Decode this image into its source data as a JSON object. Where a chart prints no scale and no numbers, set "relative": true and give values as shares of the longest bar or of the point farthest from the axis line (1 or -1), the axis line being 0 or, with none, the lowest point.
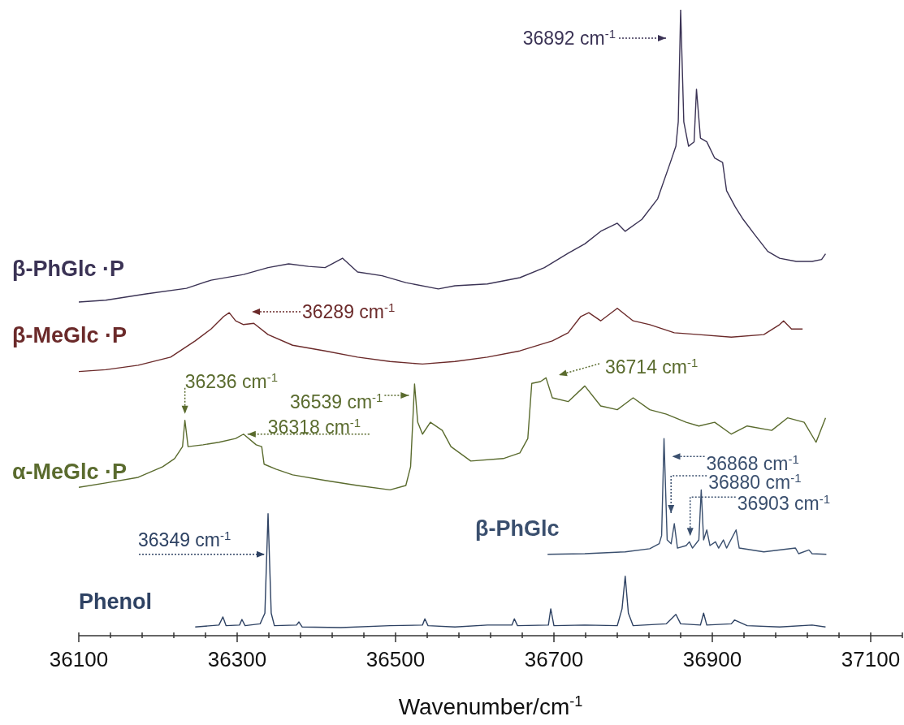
{
  "chart_data": {
    "type": "line",
    "relative": true,
    "xlabel": "Wavenumber/cm$^{-1}$",
    "xlim": [
      36100,
      37140
    ],
    "xticks": [
      36100,
      {
        "value": 36140,
        "label": null
      },
      {
        "value": 36180,
        "label": null
      },
      {
        "value": 36220,
        "label": null
      },
      {
        "value": 36260,
        "label": null
      },
      36300,
      {
        "value": 36340,
        "label": null
      },
      {
        "value": 36380,
        "label": null
      },
      {
        "value": 36420,
        "label": null
      },
      {
        "value": 36460,
        "label": null
      },
      36500,
      {
        "value": 36540,
        "label": null
      },
      {
        "value": 36580,
        "label": null
      },
      {
        "value": 36620,
        "label": null
      },
      {
        "value": 36660,
        "label": null
      },
      36700,
      {
        "value": 36740,
        "label": null
      },
      {
        "value": 36780,
        "label": null
      },
      {
        "value": 36820,
        "label": null
      },
      {
        "value": 36860,
        "label": null
      },
      36900,
      {
        "value": 36940,
        "label": null
      },
      {
        "value": 36980,
        "label": null
      },
      {
        "value": 37020,
        "label": null
      },
      {
        "value": 37060,
        "label": null
      },
      37100,
      {
        "value": 37140,
        "label": null
      }
    ],
    "series": [
      {
        "name": "β-PhGlc ·P",
        "color": "#3b3355",
        "x": [
          36100,
          36134,
          36185,
          36236,
          36267,
          36308,
          36339,
          36365,
          36390,
          36411,
          36433,
          36452,
          36483,
          36513,
          36554,
          36575,
          36616,
          36657,
          36688,
          36718,
          36739,
          36759,
          36780,
          36790,
          36811,
          36831,
          36847,
          36854,
          36857,
          36860,
          36864,
          36870,
          36877,
          36880,
          36885,
          36893,
          36903,
          36913,
          36918,
          36929,
          36939,
          36954,
          36970,
          36985,
          37006,
          37026,
          37038,
          37043
        ],
        "values": [
          0.533,
          0.536,
          0.546,
          0.555,
          0.568,
          0.577,
          0.588,
          0.594,
          0.59,
          0.588,
          0.603,
          0.581,
          0.575,
          0.564,
          0.554,
          0.559,
          0.562,
          0.572,
          0.588,
          0.611,
          0.626,
          0.646,
          0.659,
          0.646,
          0.665,
          0.698,
          0.756,
          0.782,
          0.821,
          1.0,
          0.821,
          0.782,
          0.789,
          0.873,
          0.795,
          0.789,
          0.763,
          0.756,
          0.711,
          0.685,
          0.665,
          0.64,
          0.614,
          0.603,
          0.598,
          0.598,
          0.601,
          0.61
        ]
      },
      {
        "name": "β-MeGlc ·P",
        "color": "#6b2a2a",
        "x": [
          36100,
          36134,
          36175,
          36216,
          36247,
          36267,
          36283,
          36290,
          36298,
          36308,
          36321,
          36339,
          36370,
          36411,
          36452,
          36493,
          36534,
          36575,
          36616,
          36657,
          36698,
          36718,
          36734,
          36744,
          36759,
          36780,
          36800,
          36821,
          36852,
          36883,
          36924,
          36965,
          36985,
          36990,
          37000,
          37014
        ],
        "values": [
          0.422,
          0.425,
          0.432,
          0.445,
          0.471,
          0.49,
          0.51,
          0.516,
          0.503,
          0.497,
          0.499,
          0.481,
          0.464,
          0.455,
          0.445,
          0.438,
          0.434,
          0.438,
          0.445,
          0.455,
          0.471,
          0.484,
          0.51,
          0.516,
          0.503,
          0.523,
          0.503,
          0.497,
          0.484,
          0.481,
          0.477,
          0.481,
          0.497,
          0.503,
          0.49,
          0.49
        ]
      },
      {
        "name": "α-MeGlc ·P",
        "color": "#5a6b2e",
        "x": [
          36100,
          36134,
          36175,
          36206,
          36221,
          36231,
          36234,
          36238,
          36257,
          36277,
          36298,
          36308,
          36324,
          36331,
          36334,
          36349,
          36370,
          36411,
          36452,
          36493,
          36513,
          36519,
          36524,
          36528,
          36534,
          36544,
          36559,
          36570,
          36595,
          36636,
          36657,
          36667,
          36672,
          36683,
          36690,
          36698,
          36718,
          36739,
          36759,
          36780,
          36800,
          36821,
          36842,
          36867,
          36883,
          36903,
          36924,
          36944,
          36975,
          36995,
          37016,
          37031,
          37043
        ],
        "values": [
          0.237,
          0.244,
          0.253,
          0.27,
          0.283,
          0.302,
          0.344,
          0.302,
          0.305,
          0.309,
          0.315,
          0.322,
          0.305,
          0.302,
          0.274,
          0.266,
          0.257,
          0.248,
          0.24,
          0.233,
          0.24,
          0.27,
          0.402,
          0.341,
          0.322,
          0.341,
          0.328,
          0.302,
          0.279,
          0.283,
          0.292,
          0.315,
          0.403,
          0.406,
          0.412,
          0.38,
          0.374,
          0.399,
          0.367,
          0.361,
          0.38,
          0.361,
          0.354,
          0.341,
          0.335,
          0.341,
          0.322,
          0.335,
          0.328,
          0.348,
          0.341,
          0.309,
          0.348
        ]
      },
      {
        "name": "β-PhGlc",
        "color": "#3a4f6e",
        "x": [
          36692,
          36739,
          36790,
          36821,
          36833,
          36836,
          36839,
          36843,
          36848,
          36852,
          36856,
          36867,
          36871,
          36875,
          36883,
          36886,
          36889,
          36893,
          36897,
          36904,
          36908,
          36914,
          36918,
          36930,
          36934,
          36965,
          37005,
          37009,
          37022,
          37026,
          37044
        ],
        "values": [
          0.13,
          0.131,
          0.134,
          0.139,
          0.147,
          0.16,
          0.315,
          0.153,
          0.147,
          0.179,
          0.14,
          0.144,
          0.15,
          0.14,
          0.153,
          0.233,
          0.153,
          0.169,
          0.144,
          0.15,
          0.14,
          0.153,
          0.14,
          0.169,
          0.14,
          0.134,
          0.14,
          0.131,
          0.137,
          0.131,
          0.13
        ]
      },
      {
        "name": "Phenol",
        "color": "#2e4263",
        "x": [
          36247,
          36277,
          36282,
          36286,
          36303,
          36306,
          36310,
          36329,
          36335,
          36339,
          36343,
          36347,
          36375,
          36378,
          36382,
          36431,
          36493,
          36534,
          36537,
          36541,
          36575,
          36616,
          36647,
          36650,
          36654,
          36693,
          36696,
          36700,
          36739,
          36780,
          36786,
          36790,
          36794,
          36800,
          36842,
          36854,
          36860,
          36885,
          36889,
          36893,
          36924,
          36928,
          36944,
          36985,
          37026,
          37043
        ],
        "values": [
          0.014,
          0.017,
          0.03,
          0.016,
          0.017,
          0.026,
          0.016,
          0.019,
          0.036,
          0.195,
          0.036,
          0.016,
          0.017,
          0.022,
          0.014,
          0.013,
          0.016,
          0.017,
          0.027,
          0.016,
          0.014,
          0.017,
          0.017,
          0.027,
          0.016,
          0.017,
          0.043,
          0.016,
          0.017,
          0.016,
          0.043,
          0.095,
          0.036,
          0.016,
          0.019,
          0.034,
          0.019,
          0.017,
          0.036,
          0.017,
          0.019,
          0.025,
          0.016,
          0.014,
          0.017,
          0.014
        ]
      }
    ],
    "annotations": [
      "36892 cm$^{-1}$",
      "36289 cm$^{-1}$",
      {
        "text": "36236 cm$^{-1}$",
        "x": 36234,
        "y": 0.344
      },
      {
        "text": "36539 cm$^{-1}$",
        "x": 36524,
        "y": 0.402
      },
      {
        "text": "36318 cm$^{-1}$",
        "x": 36308,
        "y": 0.322
      },
      "36714 cm$^{-1}$",
      {
        "text": "36868 cm$^{-1}$",
        "x": 36839,
        "y": 0.315
      },
      {
        "text": "36880 cm$^{-1}$",
        "x": 36852,
        "y": 0.179
      },
      {
        "text": "36903 cm$^{-1}$",
        "x": 36871,
        "y": 0.15
      },
      {
        "text": "36349 cm$^{-1}$",
        "x": 36339,
        "y": 0.195
      }
    ]
  }
}
